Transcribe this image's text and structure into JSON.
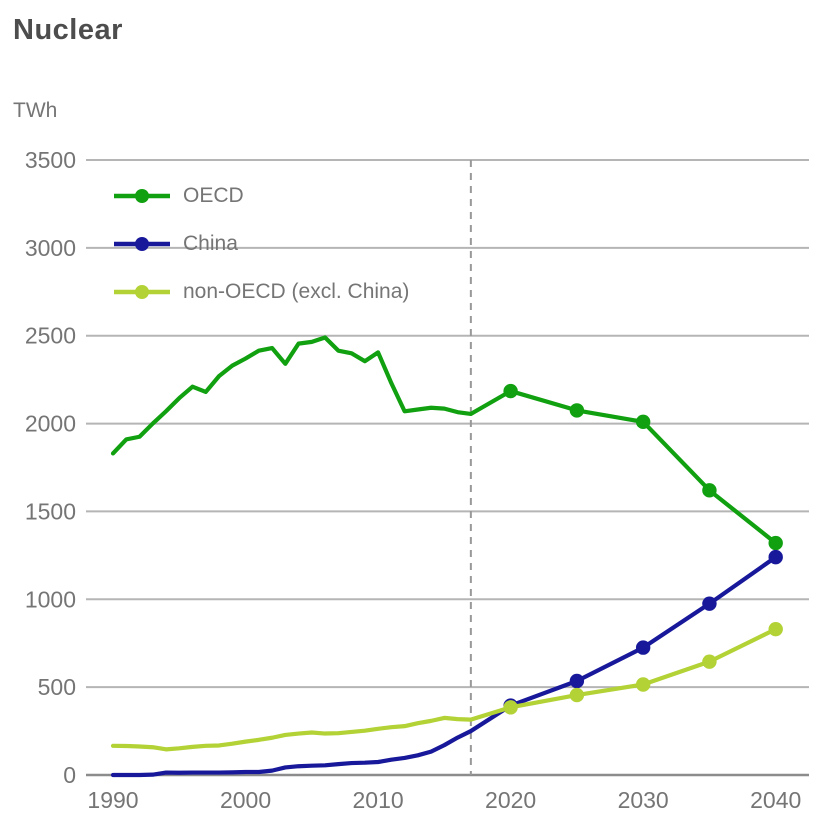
{
  "title": "Nuclear",
  "unit": "TWh",
  "legend": {
    "items": [
      {
        "label": "OECD",
        "color": "#10a010"
      },
      {
        "label": "China",
        "color": "#18189b"
      },
      {
        "label": "non-OECD (excl. China)",
        "color": "#b2d235"
      }
    ]
  },
  "chart_data": {
    "type": "line",
    "title": "Nuclear",
    "xlabel": "",
    "ylabel": "TWh",
    "xlim": [
      1990,
      2040
    ],
    "ylim": [
      0,
      3500
    ],
    "x_ticks": [
      1990,
      2000,
      2010,
      2020,
      2030,
      2040
    ],
    "y_ticks": [
      0,
      500,
      1000,
      1500,
      2000,
      2500,
      3000,
      3500
    ],
    "grid": "horizontal",
    "legend_position": "top-left-inside",
    "projection_divider_x": 2017,
    "marker_years": [
      2020,
      2025,
      2030,
      2035,
      2040
    ],
    "x": [
      1990,
      1991,
      1992,
      1993,
      1994,
      1995,
      1996,
      1997,
      1998,
      1999,
      2000,
      2001,
      2002,
      2003,
      2004,
      2005,
      2006,
      2007,
      2008,
      2009,
      2010,
      2011,
      2012,
      2013,
      2014,
      2015,
      2016,
      2017,
      2020,
      2025,
      2030,
      2035,
      2040
    ],
    "series": [
      {
        "name": "OECD",
        "color": "#10a010",
        "values": [
          1830,
          1910,
          1925,
          2000,
          2070,
          2145,
          2210,
          2180,
          2270,
          2330,
          2370,
          2415,
          2430,
          2340,
          2455,
          2465,
          2490,
          2415,
          2400,
          2355,
          2405,
          2230,
          2070,
          2080,
          2090,
          2085,
          2065,
          2055,
          2185,
          2075,
          2010,
          1620,
          1320
        ]
      },
      {
        "name": "China",
        "color": "#18189b",
        "values": [
          0,
          0,
          0,
          2,
          14,
          13,
          14,
          14,
          14,
          15,
          17,
          17,
          25,
          43,
          50,
          53,
          55,
          62,
          68,
          70,
          74,
          87,
          97,
          112,
          133,
          170,
          213,
          250,
          395,
          535,
          725,
          975,
          1240
        ]
      },
      {
        "name": "non-OECD (excl. China)",
        "color": "#b2d235",
        "values": [
          166,
          165,
          162,
          158,
          146,
          152,
          160,
          166,
          168,
          178,
          190,
          200,
          212,
          228,
          236,
          242,
          236,
          238,
          245,
          252,
          263,
          272,
          278,
          295,
          308,
          325,
          318,
          315,
          385,
          455,
          515,
          645,
          830
        ]
      }
    ]
  },
  "colors": {
    "title_text": "#4d4d4d",
    "axis_text": "#757575",
    "gridline": "#b5b5b5",
    "axis_line": "#8c8c8c",
    "divider": "#999999",
    "background": "#ffffff"
  }
}
